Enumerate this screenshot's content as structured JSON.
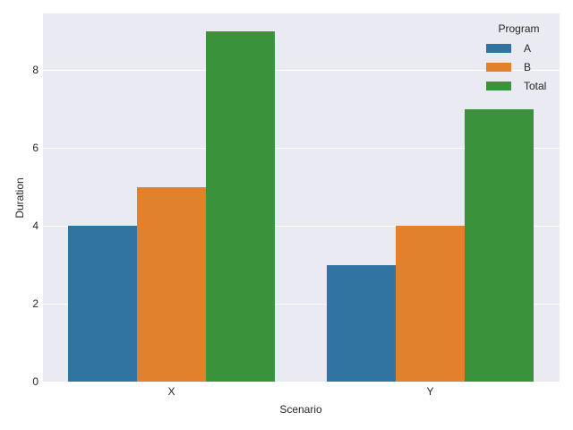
{
  "chart_data": {
    "type": "bar",
    "title": "",
    "xlabel": "Scenario",
    "ylabel": "Duration",
    "categories": [
      "X",
      "Y"
    ],
    "series": [
      {
        "name": "A",
        "values": [
          4,
          3
        ],
        "color": "#3274a1"
      },
      {
        "name": "B",
        "values": [
          5,
          4
        ],
        "color": "#e1812c"
      },
      {
        "name": "Total",
        "values": [
          9,
          7
        ],
        "color": "#3a923a"
      }
    ],
    "ylim": [
      0,
      9.45
    ],
    "yticks": [
      "0",
      "2",
      "4",
      "6",
      "8"
    ],
    "grid": true,
    "legend": {
      "title": "Program",
      "position": "upper right"
    }
  }
}
